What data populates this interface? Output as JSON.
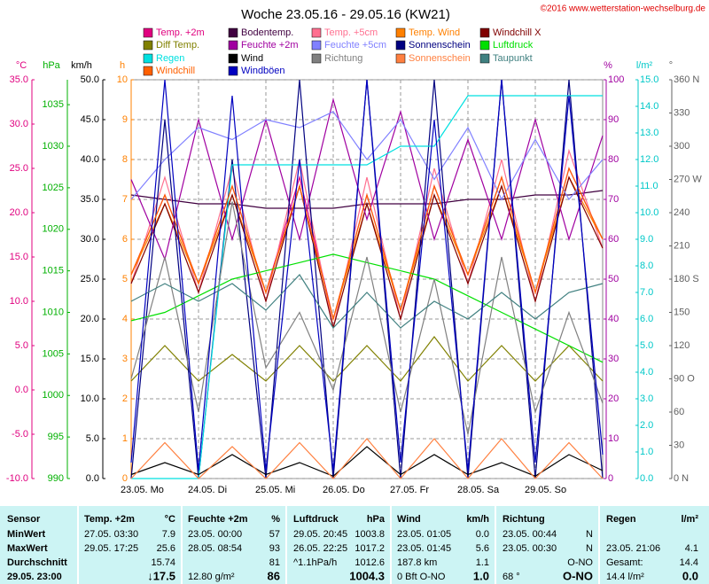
{
  "chart_data": {
    "type": "line",
    "title": "Woche 23.05.16 - 29.05.16 (KW21)",
    "copyright": "©2016 www.wetterstation-wechselburg.de",
    "x": [
      0,
      12,
      24,
      36,
      48,
      60,
      72,
      84,
      96,
      108,
      120,
      132,
      144,
      156,
      168
    ],
    "xlim": [
      0,
      168
    ],
    "xticks": [
      {
        "value": 0,
        "label": "23.05.  Mo"
      },
      {
        "value": 24,
        "label": "24.05.  Di"
      },
      {
        "value": 48,
        "label": "25.05.  Mi"
      },
      {
        "value": 72,
        "label": "26.05.  Do"
      },
      {
        "value": 96,
        "label": "27.05.  Fr"
      },
      {
        "value": 120,
        "label": "28.05.  Sa"
      },
      {
        "value": 144,
        "label": "29.05.  So"
      }
    ],
    "grid": true,
    "yaxes": {
      "c": {
        "unit": "°C",
        "color": "#e0007f",
        "lim": [
          -10,
          35
        ],
        "ticks": [
          {
            "value": 35,
            "label": "35.0"
          },
          {
            "value": 30,
            "label": "30.0"
          },
          {
            "value": 25,
            "label": "25.0"
          },
          {
            "value": 20,
            "label": "20.0"
          },
          {
            "value": 15,
            "label": "15.0"
          },
          {
            "value": 10,
            "label": "10.0"
          },
          {
            "value": 5,
            "label": "5.0"
          },
          {
            "value": 0,
            "label": "0.0"
          },
          {
            "value": -5,
            "label": "-5.0"
          },
          {
            "value": -10,
            "label": "-10.0"
          }
        ]
      },
      "hpa": {
        "unit": "hPa",
        "color": "#00b000",
        "lim": [
          990,
          1038
        ],
        "ticks": [
          1035,
          1030,
          1025,
          1020,
          1015,
          1010,
          1005,
          1000,
          995,
          990
        ]
      },
      "kmh": {
        "unit": "km/h",
        "color": "#000000",
        "lim": [
          0,
          50
        ],
        "ticks": [
          {
            "value": 50,
            "label": "50.0"
          },
          {
            "value": 45,
            "label": "45.0"
          },
          {
            "value": 40,
            "label": "40.0"
          },
          {
            "value": 35,
            "label": "35.0"
          },
          {
            "value": 30,
            "label": "30.0"
          },
          {
            "value": 25,
            "label": "25.0"
          },
          {
            "value": 20,
            "label": "20.0"
          },
          {
            "value": 15,
            "label": "15.0"
          },
          {
            "value": 10,
            "label": "10.0"
          },
          {
            "value": 5,
            "label": "5.0"
          },
          {
            "value": 0,
            "label": "0.0"
          }
        ]
      },
      "h": {
        "unit": "h",
        "color": "#ff8000",
        "lim": [
          0,
          10
        ],
        "ticks": [
          10,
          9,
          8,
          7,
          6,
          5,
          4,
          3,
          2,
          1,
          0
        ]
      },
      "pct": {
        "unit": "%",
        "color": "#a000a0",
        "lim": [
          0,
          100
        ],
        "ticks": [
          100,
          90,
          80,
          70,
          60,
          50,
          40,
          30,
          20,
          10,
          0
        ]
      },
      "lm2": {
        "unit": "l/m²",
        "color": "#00c8c8",
        "lim": [
          0,
          15
        ],
        "ticks": [
          {
            "value": 15,
            "label": "15.0"
          },
          {
            "value": 14,
            "label": "14.0"
          },
          {
            "value": 13,
            "label": "13.0"
          },
          {
            "value": 12,
            "label": "12.0"
          },
          {
            "value": 11,
            "label": "11.0"
          },
          {
            "value": 10,
            "label": "10.0"
          },
          {
            "value": 9,
            "label": "9.0"
          },
          {
            "value": 8,
            "label": "8.0"
          },
          {
            "value": 7,
            "label": "7.0"
          },
          {
            "value": 6,
            "label": "6.0"
          },
          {
            "value": 5,
            "label": "5.0"
          },
          {
            "value": 4,
            "label": "4.0"
          },
          {
            "value": 3,
            "label": "3.0"
          },
          {
            "value": 2,
            "label": "2.0"
          },
          {
            "value": 1,
            "label": "1.0"
          },
          {
            "value": 0,
            "label": "0.0"
          }
        ]
      },
      "deg": {
        "unit": "°",
        "color": "#606060",
        "lim": [
          0,
          360
        ],
        "ticks": [
          {
            "value": 360,
            "label": "360 N"
          },
          330,
          300,
          {
            "value": 270,
            "label": "270 W"
          },
          240,
          210,
          {
            "value": 180,
            "label": "180 S"
          },
          150,
          120,
          {
            "value": 90,
            "label": "90 O"
          },
          60,
          30,
          {
            "value": 0,
            "label": "0 N"
          }
        ]
      }
    },
    "series": [
      {
        "name": "Temp. +2m",
        "color": "#e0007f",
        "axis": "c",
        "values": [
          13,
          22,
          12,
          23,
          11,
          24,
          8,
          22,
          9,
          23,
          13,
          24,
          11,
          25,
          17
        ]
      },
      {
        "name": "Bodentemp.",
        "color": "#400040",
        "axis": "c",
        "values": [
          22,
          21.5,
          21,
          21,
          20.5,
          20.5,
          20.5,
          21,
          21,
          21,
          21.5,
          21.5,
          22,
          22,
          22.5
        ]
      },
      {
        "name": "Temp. +5cm",
        "color": "#ff7090",
        "axis": "c",
        "values": [
          12,
          24,
          11,
          25,
          10,
          26,
          7,
          24,
          8,
          25,
          12,
          26,
          10,
          27,
          16
        ]
      },
      {
        "name": "Temp. Wind",
        "color": "#ff8000",
        "axis": "c",
        "values": [
          13,
          21,
          12,
          22,
          11,
          23,
          8,
          21,
          9,
          22,
          13,
          23,
          11,
          24,
          17
        ]
      },
      {
        "name": "Windchill X",
        "color": "#800000",
        "axis": "c",
        "values": [
          12,
          21,
          11,
          22,
          10,
          23,
          7,
          21,
          8,
          22,
          12,
          23,
          10,
          24,
          16
        ]
      },
      {
        "name": "Diff Temp.",
        "color": "#808000",
        "axis": "c",
        "values": [
          1,
          5,
          1,
          4,
          1,
          5,
          1,
          5,
          1,
          6,
          1,
          5,
          1,
          5,
          1
        ]
      },
      {
        "name": "Feuchte +2m",
        "color": "#a000a0",
        "axis": "pct",
        "values": [
          75,
          55,
          90,
          60,
          90,
          60,
          95,
          65,
          92,
          60,
          85,
          60,
          90,
          60,
          86
        ]
      },
      {
        "name": "Feuchte +5cm",
        "color": "#8080ff",
        "axis": "pct",
        "values": [
          70,
          80,
          88,
          85,
          90,
          88,
          92,
          80,
          90,
          75,
          88,
          70,
          85,
          70,
          80
        ]
      },
      {
        "name": "Sonnenschein",
        "color": "#000080",
        "axis": "h",
        "values": [
          0,
          9,
          0,
          8,
          0,
          10,
          0,
          10,
          0,
          10,
          0,
          10,
          0,
          10,
          0
        ]
      },
      {
        "name": "Luftdruck",
        "color": "#00e000",
        "axis": "hpa",
        "values": [
          1009,
          1010,
          1012,
          1014,
          1015,
          1016,
          1017,
          1016,
          1015,
          1014,
          1012,
          1010,
          1008,
          1006,
          1004
        ]
      },
      {
        "name": "Regen",
        "color": "#00e0e0",
        "axis": "lm2",
        "values": [
          0,
          0,
          0,
          11.8,
          11.8,
          11.8,
          11.8,
          11.8,
          12.5,
          12.5,
          14.4,
          14.4,
          14.4,
          14.4,
          14.4
        ]
      },
      {
        "name": "Wind",
        "color": "#000000",
        "axis": "kmh",
        "values": [
          0.5,
          2,
          0.5,
          3,
          0.5,
          2,
          0.3,
          4,
          0.5,
          3,
          0.5,
          2,
          0.3,
          3,
          1
        ]
      },
      {
        "name": "Richtung",
        "color": "#808080",
        "axis": "deg",
        "values": [
          90,
          200,
          60,
          250,
          100,
          150,
          80,
          200,
          60,
          180,
          40,
          200,
          60,
          150,
          68
        ]
      },
      {
        "name": "Sonnenschein",
        "color": "#ff8040",
        "axis": "h",
        "values": [
          0,
          0.9,
          0,
          0.8,
          0,
          0.9,
          0,
          1,
          0,
          1,
          0,
          1,
          0,
          0.9,
          0
        ]
      },
      {
        "name": "Taupunkt",
        "color": "#408080",
        "axis": "c",
        "values": [
          10,
          12,
          10,
          12,
          9,
          13,
          7,
          11,
          7,
          10,
          8,
          11,
          8,
          11,
          12
        ]
      },
      {
        "name": "Windchill",
        "color": "#ff6000",
        "axis": "c",
        "values": [
          13,
          22,
          12,
          23,
          11,
          23,
          8,
          22,
          9,
          23,
          13,
          24,
          11,
          25,
          17
        ]
      },
      {
        "name": "Windböen",
        "color": "#0000c0",
        "axis": "kmh",
        "values": [
          2,
          50,
          1,
          48,
          1,
          40,
          1,
          50,
          2,
          45,
          1,
          50,
          2,
          48,
          3
        ]
      }
    ]
  },
  "table": {
    "rows": [
      [
        "Sensor",
        "Temp. +2m",
        "°C",
        "Feuchte +2m",
        "%",
        "Luftdruck",
        "hPa",
        "Wind",
        "km/h",
        "Richtung",
        null,
        "Regen",
        "l/m²"
      ],
      [
        "MinWert",
        "27.05.  03:30",
        "7.9",
        "23.05.  00:00",
        "57",
        "29.05.  20:45",
        "1003.8",
        "23.05.  01:05",
        "0.0",
        "23.05.  00:44",
        "N",
        null,
        null
      ],
      [
        "MaxWert",
        "29.05.  17:25",
        "25.6",
        "28.05.  08:54",
        "93",
        "26.05.  22:25",
        "1017.2",
        "23.05.  01:45",
        "5.6",
        "23.05.  00:30",
        "N",
        "23.05.  21:06",
        "4.1"
      ],
      [
        "Durchschnitt",
        null,
        "15.74",
        null,
        "81",
        "^1.1hPa/h",
        "1012.6",
        "187.8 km",
        "1.1",
        null,
        "O-NO",
        "Gesamt:",
        "14.4"
      ],
      [
        "29.05.  23:00",
        null,
        "↓17.5",
        "12.80 g/m²",
        "86",
        null,
        "1004.3",
        "0 Bft O-NO",
        "1.0",
        "68 °",
        "O-NO",
        "14.4 l/m²",
        "0.0"
      ]
    ]
  }
}
